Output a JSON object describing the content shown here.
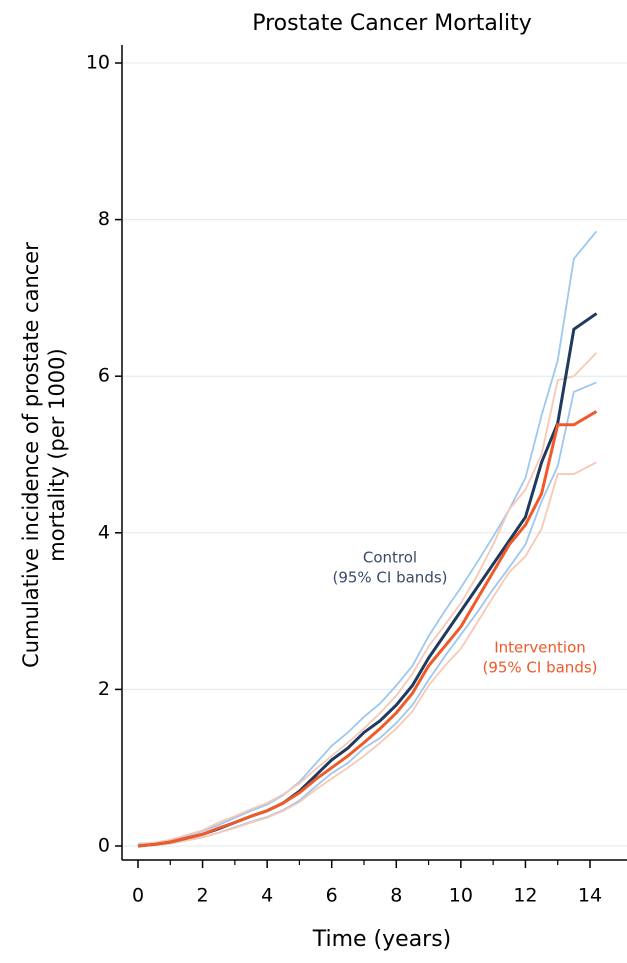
{
  "chart_data": {
    "type": "line",
    "title": "Prostate Cancer Mortality",
    "xlabel": "Time (years)",
    "ylabel": [
      "Cumulative incidence of prostate cancer",
      "mortality (per 1000)"
    ],
    "x": [
      0,
      0.5,
      1,
      1.5,
      2,
      2.5,
      3,
      3.5,
      4,
      4.5,
      5,
      5.5,
      6,
      6.5,
      7,
      7.5,
      8,
      8.5,
      9,
      9.5,
      10,
      10.5,
      11,
      11.5,
      12,
      12.5,
      13,
      13.5,
      14.2
    ],
    "series": [
      {
        "color": "#9cc8f0",
        "values": [
          0.03,
          0.04,
          0.07,
          0.13,
          0.19,
          0.27,
          0.36,
          0.45,
          0.53,
          0.65,
          0.82,
          1.05,
          1.28,
          1.45,
          1.65,
          1.82,
          2.05,
          2.3,
          2.68,
          3.0,
          3.3,
          3.62,
          3.95,
          4.3,
          4.7,
          5.5,
          6.2,
          7.5,
          7.85
        ]
      },
      {
        "color": "#9cc8f0",
        "values": [
          0,
          0.01,
          0.03,
          0.07,
          0.11,
          0.17,
          0.24,
          0.31,
          0.37,
          0.46,
          0.58,
          0.76,
          0.93,
          1.06,
          1.25,
          1.38,
          1.57,
          1.8,
          2.12,
          2.42,
          2.7,
          2.98,
          3.28,
          3.56,
          3.85,
          4.4,
          4.85,
          5.8,
          5.92
        ]
      },
      {
        "color": "#f8c8b6",
        "values": [
          0.02,
          0.04,
          0.08,
          0.14,
          0.2,
          0.3,
          0.38,
          0.47,
          0.55,
          0.66,
          0.8,
          0.98,
          1.15,
          1.32,
          1.5,
          1.7,
          1.92,
          2.2,
          2.55,
          2.82,
          3.1,
          3.45,
          3.85,
          4.3,
          4.55,
          5.0,
          5.95,
          6.0,
          6.3
        ]
      },
      {
        "color": "#f8c8b6",
        "values": [
          0,
          0.01,
          0.03,
          0.07,
          0.11,
          0.17,
          0.23,
          0.3,
          0.36,
          0.45,
          0.56,
          0.72,
          0.86,
          1.0,
          1.15,
          1.32,
          1.5,
          1.72,
          2.05,
          2.3,
          2.52,
          2.85,
          3.18,
          3.5,
          3.7,
          4.05,
          4.75,
          4.75,
          4.9
        ]
      },
      {
        "color": "#1e3a5f",
        "values": [
          0,
          0.02,
          0.05,
          0.1,
          0.15,
          0.22,
          0.3,
          0.38,
          0.45,
          0.55,
          0.7,
          0.9,
          1.1,
          1.25,
          1.45,
          1.6,
          1.8,
          2.05,
          2.4,
          2.7,
          3.0,
          3.3,
          3.6,
          3.9,
          4.2,
          4.9,
          5.4,
          6.6,
          6.8
        ]
      },
      {
        "color": "#f05a28",
        "values": [
          0,
          0.02,
          0.05,
          0.1,
          0.15,
          0.23,
          0.3,
          0.38,
          0.45,
          0.55,
          0.68,
          0.85,
          1.0,
          1.15,
          1.32,
          1.5,
          1.7,
          1.95,
          2.3,
          2.55,
          2.8,
          3.15,
          3.5,
          3.85,
          4.1,
          4.5,
          5.38,
          5.38,
          5.55
        ]
      }
    ],
    "annotations": [
      {
        "text": [
          "Control",
          "(95% CI bands)"
        ],
        "color": "#3b4a6b"
      },
      {
        "text": [
          "Intervention",
          "(95% CI bands)"
        ],
        "color": "#f05a28"
      }
    ],
    "xlim": [
      0,
      14
    ],
    "xticks": [
      0,
      2,
      4,
      6,
      8,
      10,
      12,
      14
    ],
    "xminorticks": [
      1,
      3,
      5,
      7,
      9,
      11,
      13
    ],
    "ylim": [
      0,
      10
    ],
    "yticks": [
      0,
      2,
      4,
      6,
      8,
      10
    ],
    "grid": true
  }
}
